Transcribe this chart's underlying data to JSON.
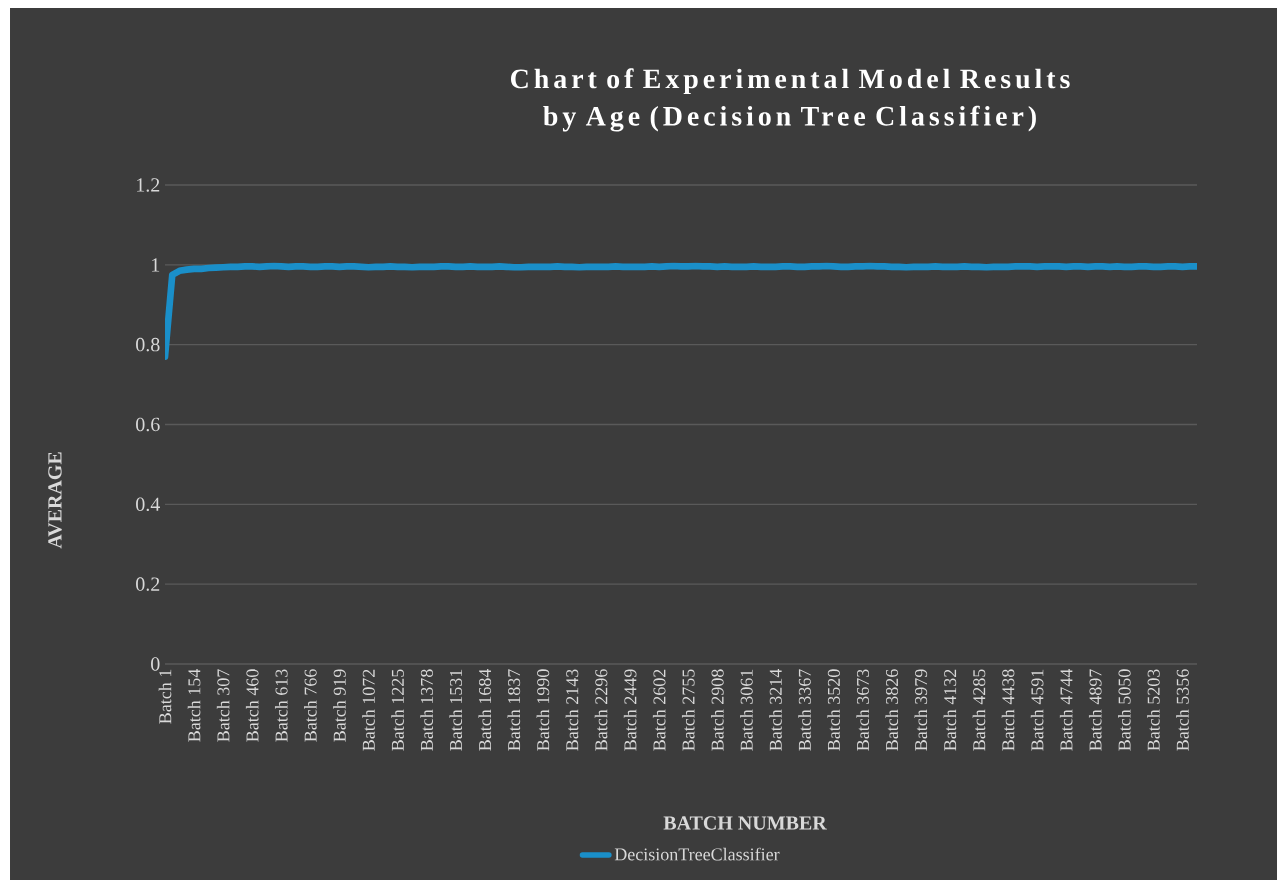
{
  "chart_data": {
    "type": "line",
    "title": "Chart of Experimental Model Results by Age (Decision Tree Classifier)",
    "xlabel": "BATCH NUMBER",
    "ylabel": "AVERAGE",
    "categories": [
      "Batch 1",
      null,
      null,
      null,
      "Batch 154",
      null,
      null,
      null,
      "Batch 307",
      null,
      null,
      null,
      "Batch 460",
      null,
      null,
      null,
      "Batch 613",
      null,
      null,
      null,
      "Batch 766",
      null,
      null,
      null,
      "Batch 919",
      null,
      null,
      null,
      "Batch 1072",
      null,
      null,
      null,
      "Batch 1225",
      null,
      null,
      null,
      "Batch 1378",
      null,
      null,
      null,
      "Batch 1531",
      null,
      null,
      null,
      "Batch 1684",
      null,
      null,
      null,
      "Batch 1837",
      null,
      null,
      null,
      "Batch 1990",
      null,
      null,
      null,
      "Batch 2143",
      null,
      null,
      null,
      "Batch 2296",
      null,
      null,
      null,
      "Batch 2449",
      null,
      null,
      null,
      "Batch 2602",
      null,
      null,
      null,
      "Batch 2755",
      null,
      null,
      null,
      "Batch 2908",
      null,
      null,
      null,
      "Batch 3061",
      null,
      null,
      null,
      "Batch 3214",
      null,
      null,
      null,
      "Batch 3367",
      null,
      null,
      null,
      "Batch 3520",
      null,
      null,
      null,
      "Batch 3673",
      null,
      null,
      null,
      "Batch 3826",
      null,
      null,
      null,
      "Batch 3979",
      null,
      null,
      null,
      "Batch 4132",
      null,
      null,
      null,
      "Batch 4285",
      null,
      null,
      null,
      "Batch 4438",
      null,
      null,
      null,
      "Batch 4591",
      null,
      null,
      null,
      "Batch 4744",
      null,
      null,
      null,
      "Batch 4897",
      null,
      null,
      null,
      "Batch 5050",
      null,
      null,
      null,
      "Batch 5203",
      null,
      null,
      null,
      "Batch 5356",
      null,
      null
    ],
    "series": [
      {
        "name": "DecisionTreeClassifier",
        "color": "#1a8fc9",
        "values": [
          0.77,
          0.975,
          0.985,
          0.988,
          0.99,
          0.99,
          0.992,
          0.993,
          0.994,
          0.995,
          0.995,
          0.996,
          0.996,
          0.995,
          0.996,
          0.997,
          0.996,
          0.995,
          0.996,
          0.996,
          0.995,
          0.995,
          0.996,
          0.996,
          0.995,
          0.996,
          0.996,
          0.995,
          0.994,
          0.995,
          0.995,
          0.996,
          0.995,
          0.995,
          0.994,
          0.995,
          0.995,
          0.995,
          0.996,
          0.996,
          0.995,
          0.995,
          0.996,
          0.995,
          0.995,
          0.995,
          0.996,
          0.995,
          0.994,
          0.994,
          0.995,
          0.995,
          0.995,
          0.995,
          0.996,
          0.995,
          0.995,
          0.994,
          0.995,
          0.995,
          0.995,
          0.995,
          0.996,
          0.995,
          0.995,
          0.995,
          0.995,
          0.996,
          0.995,
          0.996,
          0.997,
          0.996,
          0.996,
          0.997,
          0.996,
          0.996,
          0.995,
          0.996,
          0.995,
          0.995,
          0.995,
          0.996,
          0.995,
          0.995,
          0.995,
          0.996,
          0.996,
          0.995,
          0.995,
          0.996,
          0.996,
          0.997,
          0.996,
          0.995,
          0.995,
          0.996,
          0.996,
          0.997,
          0.996,
          0.996,
          0.995,
          0.995,
          0.994,
          0.995,
          0.995,
          0.995,
          0.996,
          0.995,
          0.995,
          0.995,
          0.996,
          0.995,
          0.995,
          0.994,
          0.995,
          0.995,
          0.995,
          0.996,
          0.996,
          0.996,
          0.995,
          0.996,
          0.996,
          0.996,
          0.995,
          0.996,
          0.996,
          0.995,
          0.996,
          0.996,
          0.995,
          0.996,
          0.995,
          0.995,
          0.996,
          0.996,
          0.995,
          0.995,
          0.996,
          0.996,
          0.995,
          0.996,
          0.996
        ]
      }
    ],
    "ylim": [
      0,
      1.2
    ],
    "yticks": [
      0,
      0.2,
      0.4,
      0.6,
      0.8,
      1,
      1.2
    ],
    "grid": "y",
    "legend": "bottom",
    "marker": "none",
    "line_style": "solid"
  }
}
